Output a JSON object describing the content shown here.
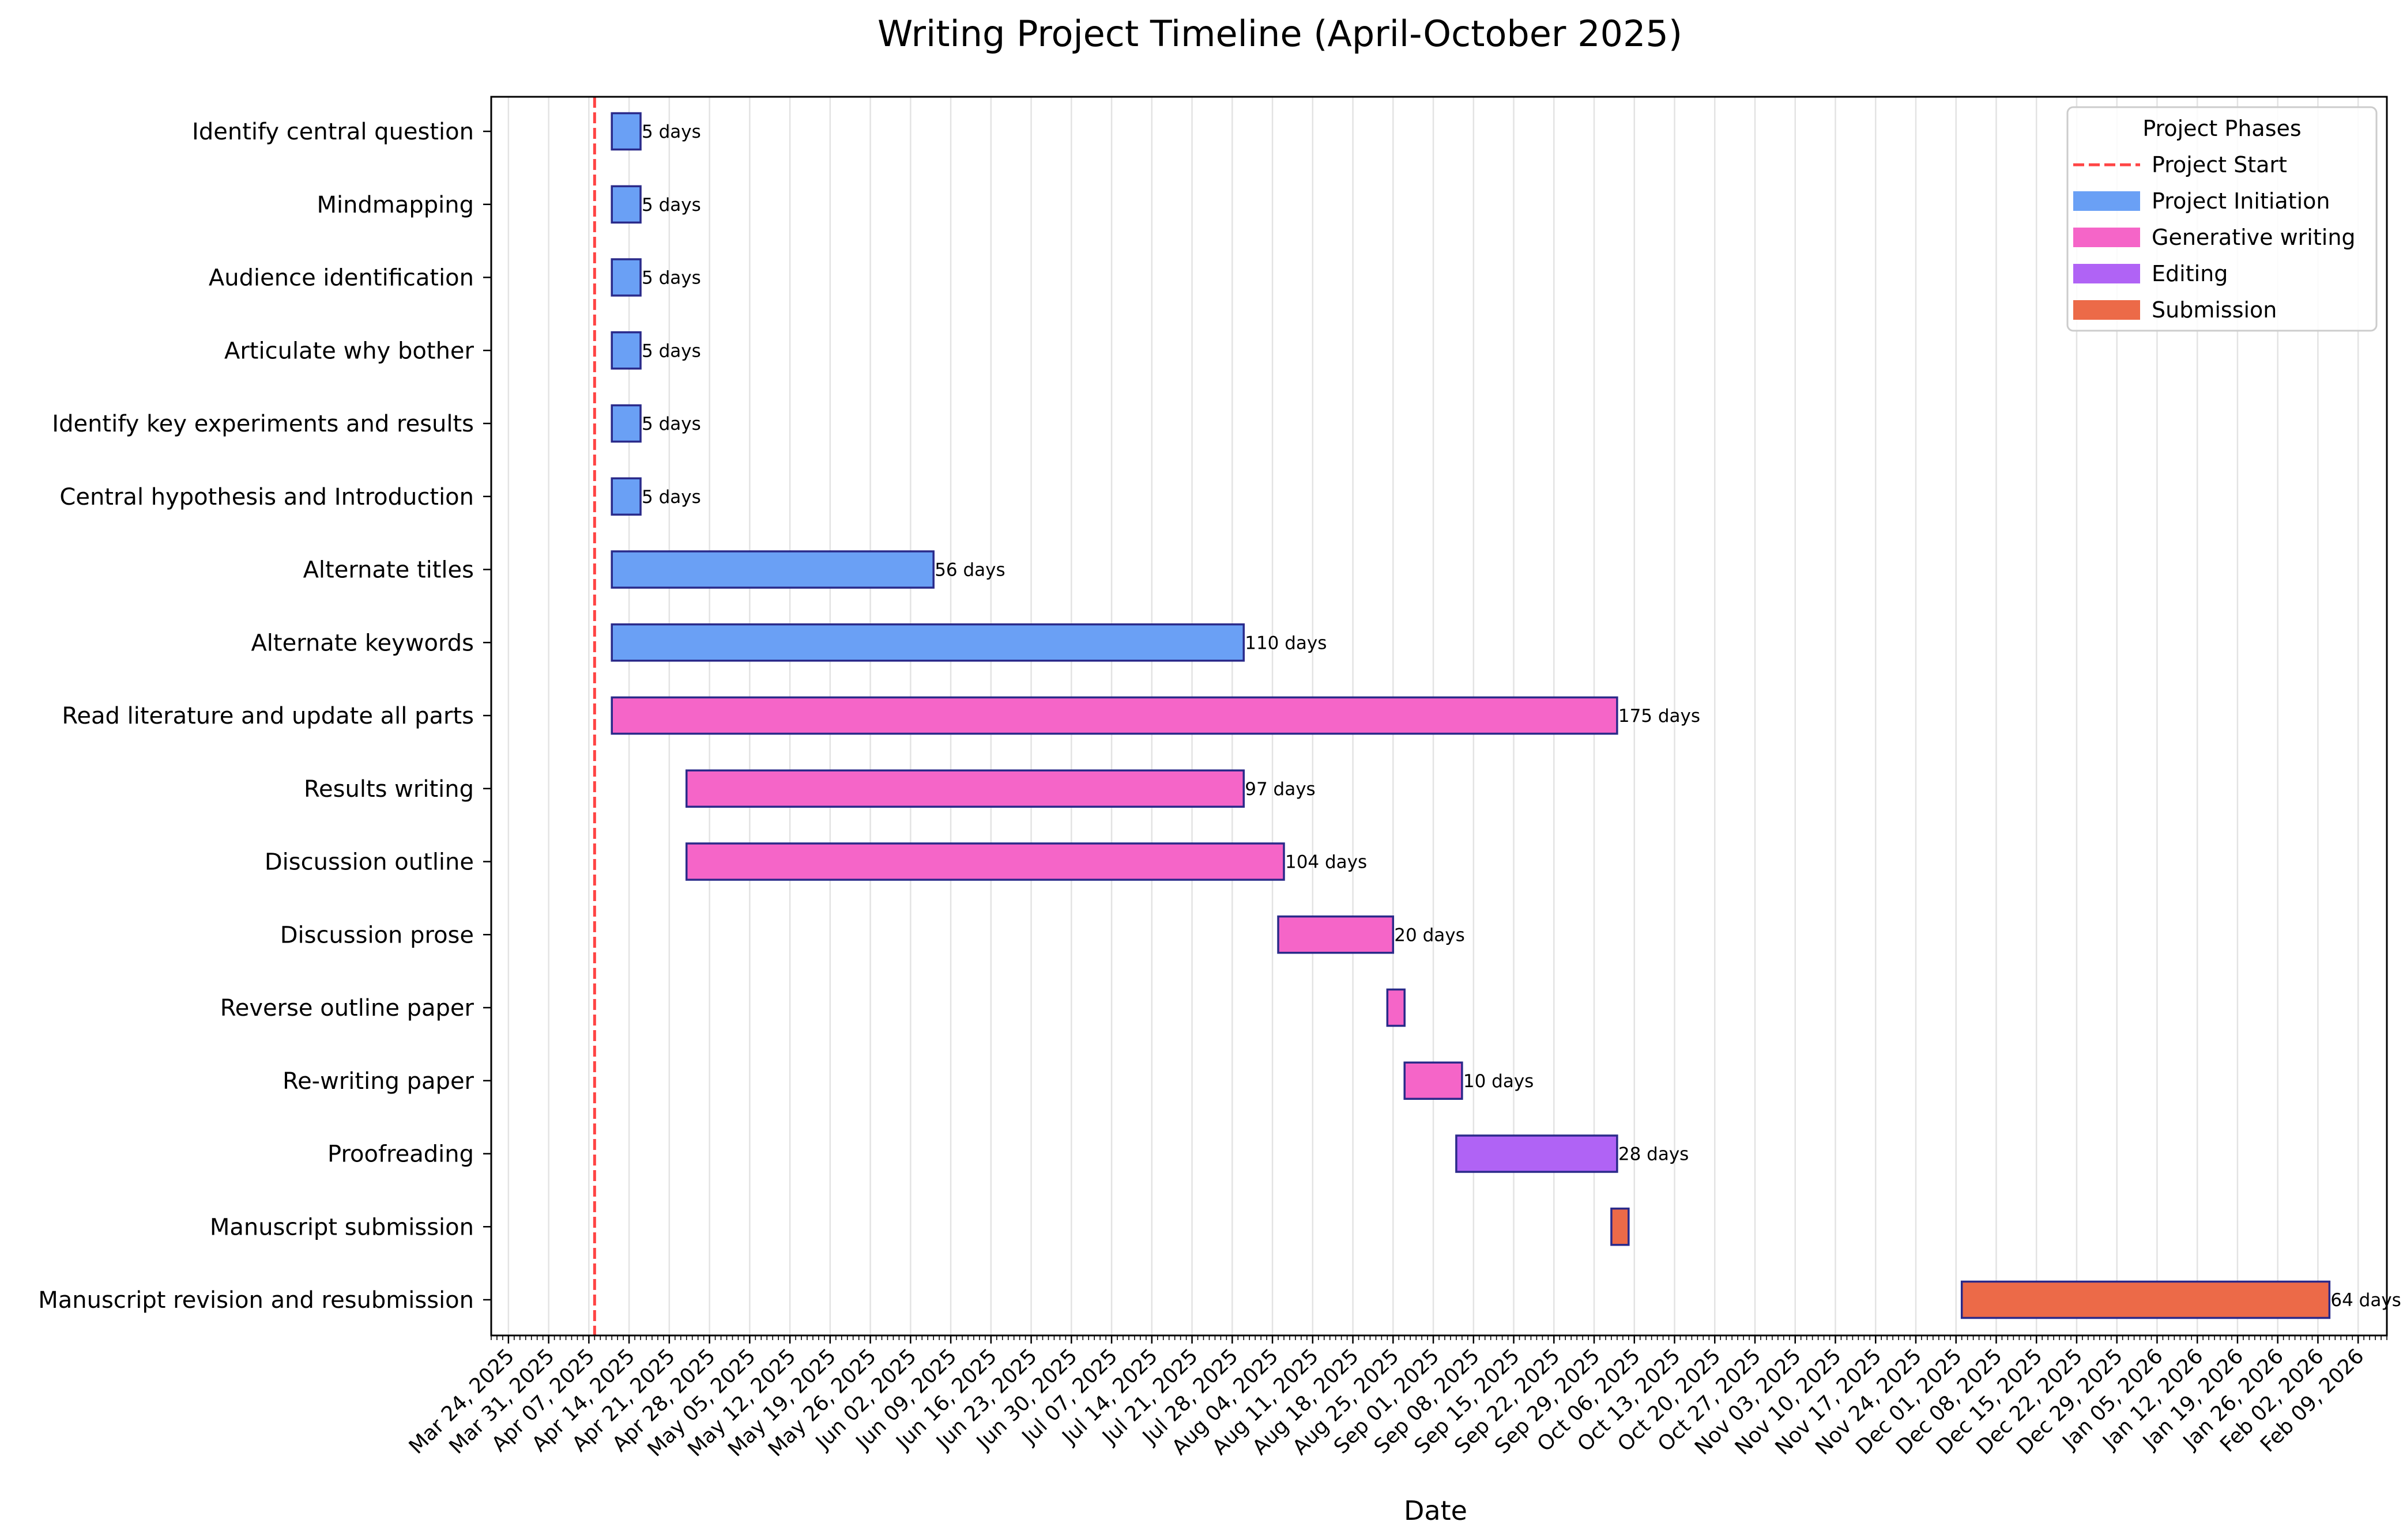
{
  "chart_data": {
    "type": "gantt",
    "title": "Writing Project Timeline (April-October 2025)",
    "xlabel": "Date",
    "ylabel": "",
    "xlim": [
      "2025-03-21",
      "2026-02-14"
    ],
    "grid": "vertical-weekly",
    "project_start": {
      "date": "2025-04-08",
      "label": "Project Start",
      "color": "#ff4444"
    },
    "legend": {
      "title": "Project Phases",
      "placement": "top-right",
      "entries": [
        "Project Start",
        "Project Initiation",
        "Generative writing",
        "Editing",
        "Submission"
      ]
    },
    "phases": [
      {
        "name": "Project Initiation",
        "color": "#6aa0f5"
      },
      {
        "name": "Generative writing",
        "color": "#f565c8"
      },
      {
        "name": "Editing",
        "color": "#b063f5"
      },
      {
        "name": "Submission",
        "color": "#ec6a48"
      }
    ],
    "tasks": [
      {
        "name": "Identify central question",
        "phase": "Project Initiation",
        "start": "2025-04-11",
        "end": "2025-04-16",
        "duration_label": "5 days"
      },
      {
        "name": "Mindmapping",
        "phase": "Project Initiation",
        "start": "2025-04-11",
        "end": "2025-04-16",
        "duration_label": "5 days"
      },
      {
        "name": "Audience identification",
        "phase": "Project Initiation",
        "start": "2025-04-11",
        "end": "2025-04-16",
        "duration_label": "5 days"
      },
      {
        "name": "Articulate why bother",
        "phase": "Project Initiation",
        "start": "2025-04-11",
        "end": "2025-04-16",
        "duration_label": "5 days"
      },
      {
        "name": "Identify key experiments and results",
        "phase": "Project Initiation",
        "start": "2025-04-11",
        "end": "2025-04-16",
        "duration_label": "5 days"
      },
      {
        "name": "Central hypothesis and Introduction",
        "phase": "Project Initiation",
        "start": "2025-04-11",
        "end": "2025-04-16",
        "duration_label": "5 days"
      },
      {
        "name": "Alternate titles",
        "phase": "Project Initiation",
        "start": "2025-04-11",
        "end": "2025-06-06",
        "duration_label": "56 days"
      },
      {
        "name": "Alternate keywords",
        "phase": "Project Initiation",
        "start": "2025-04-11",
        "end": "2025-07-30",
        "duration_label": "110 days"
      },
      {
        "name": "Read literature and update all parts",
        "phase": "Generative writing",
        "start": "2025-04-11",
        "end": "2025-10-03",
        "duration_label": "175 days"
      },
      {
        "name": "Results writing",
        "phase": "Generative writing",
        "start": "2025-04-24",
        "end": "2025-07-30",
        "duration_label": "97 days"
      },
      {
        "name": "Discussion outline",
        "phase": "Generative writing",
        "start": "2025-04-24",
        "end": "2025-08-06",
        "duration_label": "104 days"
      },
      {
        "name": "Discussion prose",
        "phase": "Generative writing",
        "start": "2025-08-05",
        "end": "2025-08-25",
        "duration_label": "20 days"
      },
      {
        "name": "Reverse outline paper",
        "phase": "Generative writing",
        "start": "2025-08-24",
        "end": "2025-08-27",
        "duration_label": ""
      },
      {
        "name": "Re-writing paper",
        "phase": "Generative writing",
        "start": "2025-08-27",
        "end": "2025-09-06",
        "duration_label": "10 days"
      },
      {
        "name": "Proofreading",
        "phase": "Editing",
        "start": "2025-09-05",
        "end": "2025-10-03",
        "duration_label": "28 days"
      },
      {
        "name": "Manuscript submission",
        "phase": "Submission",
        "start": "2025-10-02",
        "end": "2025-10-05",
        "duration_label": ""
      },
      {
        "name": "Manuscript revision and resubmission",
        "phase": "Submission",
        "start": "2025-12-02",
        "end": "2026-02-04",
        "duration_label": "64 days"
      }
    ],
    "x_tick_labels": [
      "Mar 24, 2025",
      "Mar 31, 2025",
      "Apr 07, 2025",
      "Apr 14, 2025",
      "Apr 21, 2025",
      "Apr 28, 2025",
      "May 05, 2025",
      "May 12, 2025",
      "May 19, 2025",
      "May 26, 2025",
      "Jun 02, 2025",
      "Jun 09, 2025",
      "Jun 16, 2025",
      "Jun 23, 2025",
      "Jun 30, 2025",
      "Jul 07, 2025",
      "Jul 14, 2025",
      "Jul 21, 2025",
      "Jul 28, 2025",
      "Aug 04, 2025",
      "Aug 11, 2025",
      "Aug 18, 2025",
      "Aug 25, 2025",
      "Sep 01, 2025",
      "Sep 08, 2025",
      "Sep 15, 2025",
      "Sep 22, 2025",
      "Sep 29, 2025",
      "Oct 06, 2025",
      "Oct 13, 2025",
      "Oct 20, 2025",
      "Oct 27, 2025",
      "Nov 03, 2025",
      "Nov 10, 2025",
      "Nov 17, 2025",
      "Nov 24, 2025",
      "Dec 01, 2025",
      "Dec 08, 2025",
      "Dec 15, 2025",
      "Dec 22, 2025",
      "Dec 29, 2025",
      "Jan 05, 2026",
      "Jan 12, 2026",
      "Jan 19, 2026",
      "Jan 26, 2026",
      "Feb 02, 2026",
      "Feb 09, 2026"
    ]
  }
}
